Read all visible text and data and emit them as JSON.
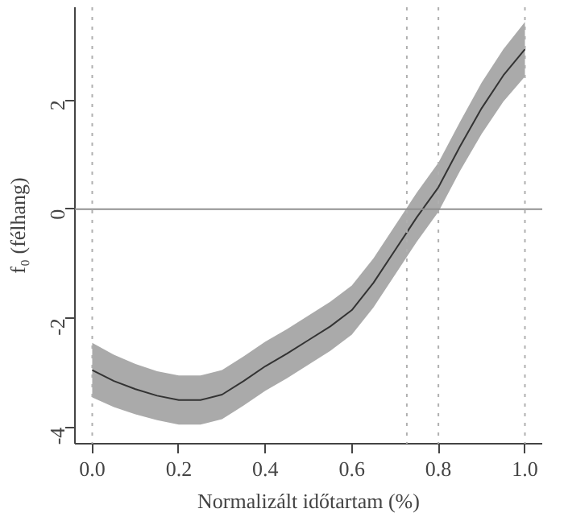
{
  "chart_data": {
    "type": "line",
    "xlabel": "Normalizált időtartam (%)",
    "ylabel": "f₀ (félhang)",
    "xlim": [
      -0.04,
      1.04
    ],
    "ylim": [
      -4.3,
      3.7
    ],
    "xticks": [
      {
        "value": 0,
        "label": "0.0"
      },
      0.2,
      0.4,
      0.6,
      0.8,
      {
        "value": 1,
        "label": "1.0"
      }
    ],
    "yticks": [
      -4,
      -2,
      0,
      2
    ],
    "grid": false,
    "marker": "none",
    "line_style": "solid",
    "series": [
      {
        "color": "#333333",
        "x": [
          0,
          0.05,
          0.1,
          0.15,
          0.2,
          0.25,
          0.3,
          0.35,
          0.4,
          0.45,
          0.5,
          0.55,
          0.6,
          0.65,
          0.7,
          0.75,
          0.8,
          0.85,
          0.9,
          0.95,
          1.0
        ],
        "values": [
          -2.95,
          -3.15,
          -3.3,
          -3.42,
          -3.5,
          -3.5,
          -3.4,
          -3.15,
          -2.88,
          -2.65,
          -2.4,
          -2.15,
          -1.85,
          -1.35,
          -0.75,
          -0.15,
          0.4,
          1.15,
          1.85,
          2.45,
          2.93
        ],
        "lower": [
          -3.45,
          -3.63,
          -3.76,
          -3.87,
          -3.95,
          -3.95,
          -3.85,
          -3.6,
          -3.33,
          -3.1,
          -2.85,
          -2.6,
          -2.3,
          -1.8,
          -1.2,
          -0.6,
          -0.05,
          0.7,
          1.38,
          1.97,
          2.43
        ],
        "upper": [
          -2.45,
          -2.67,
          -2.84,
          -2.97,
          -3.05,
          -3.05,
          -2.95,
          -2.7,
          -2.43,
          -2.2,
          -1.95,
          -1.7,
          -1.4,
          -0.9,
          -0.3,
          0.3,
          0.85,
          1.6,
          2.32,
          2.93,
          3.43
        ]
      }
    ],
    "ref_lines": [
      {
        "axis": "x",
        "value": 0,
        "label": null,
        "color": "#b0b0b0",
        "line_style": "dotted"
      },
      {
        "axis": "x",
        "value": 0.727,
        "label": null,
        "color": "#b0b0b0",
        "line_style": "dotted"
      },
      {
        "axis": "x",
        "value": 0.8,
        "label": null,
        "color": "#b0b0b0",
        "line_style": "dotted"
      },
      {
        "axis": "x",
        "value": 1.0,
        "label": null,
        "color": "#b0b0b0",
        "line_style": "dotted"
      },
      {
        "axis": "y",
        "value": 0,
        "label": null,
        "color": "#909090",
        "line_style": "solid"
      }
    ]
  }
}
